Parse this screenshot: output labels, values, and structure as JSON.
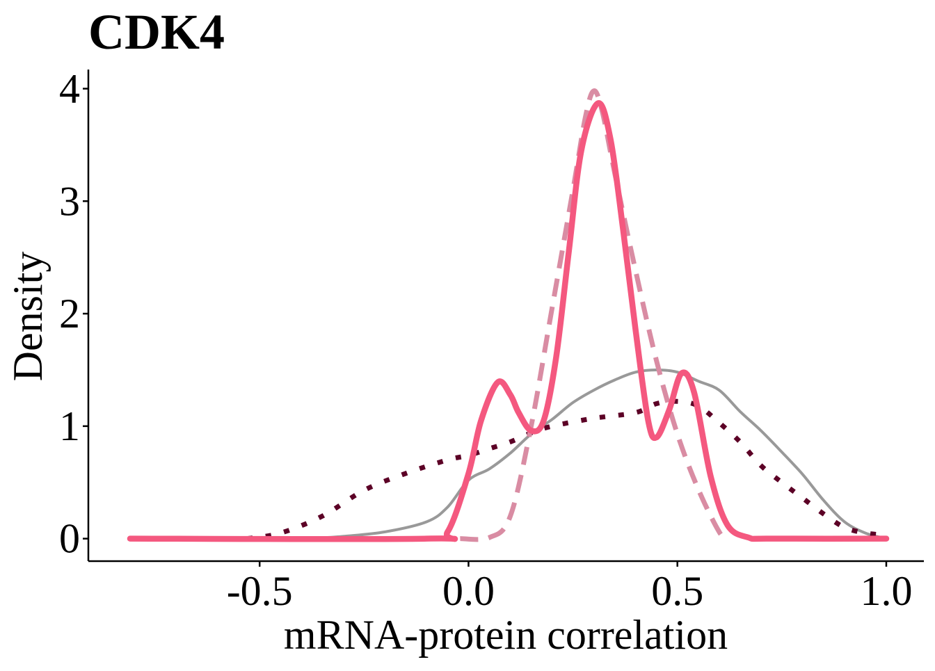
{
  "chart_data": {
    "type": "line",
    "title": "CDK4",
    "xlabel": "mRNA-protein correlation",
    "ylabel": "Density",
    "xlim": [
      -0.91,
      1.09
    ],
    "ylim": [
      -0.2,
      4.17
    ],
    "x_ticks": [
      {
        "value": -0.5,
        "label": "-0.5"
      },
      {
        "value": 0.0,
        "label": "0.0"
      },
      {
        "value": 0.5,
        "label": "0.5"
      },
      {
        "value": 1.0,
        "label": "1.0"
      }
    ],
    "y_ticks": [
      {
        "value": 0,
        "label": "0"
      },
      {
        "value": 1,
        "label": "1"
      },
      {
        "value": 2,
        "label": "2"
      },
      {
        "value": 3,
        "label": "3"
      },
      {
        "value": 4,
        "label": "4"
      }
    ],
    "grid": false,
    "legend": "none",
    "series": [
      {
        "style": "solid-thin",
        "color": "#999999",
        "points": [
          [
            -0.38,
            0.0
          ],
          [
            -0.3,
            0.02
          ],
          [
            -0.2,
            0.06
          ],
          [
            -0.1,
            0.15
          ],
          [
            -0.05,
            0.28
          ],
          [
            0.0,
            0.52
          ],
          [
            0.05,
            0.62
          ],
          [
            0.1,
            0.76
          ],
          [
            0.15,
            0.93
          ],
          [
            0.2,
            1.06
          ],
          [
            0.25,
            1.21
          ],
          [
            0.3,
            1.32
          ],
          [
            0.35,
            1.41
          ],
          [
            0.4,
            1.48
          ],
          [
            0.45,
            1.5
          ],
          [
            0.5,
            1.48
          ],
          [
            0.55,
            1.4
          ],
          [
            0.6,
            1.32
          ],
          [
            0.65,
            1.13
          ],
          [
            0.7,
            0.96
          ],
          [
            0.75,
            0.77
          ],
          [
            0.8,
            0.57
          ],
          [
            0.85,
            0.34
          ],
          [
            0.9,
            0.15
          ],
          [
            0.95,
            0.05
          ],
          [
            1.0,
            0.0
          ]
        ]
      },
      {
        "style": "dotted",
        "color": "#5c0026",
        "points": [
          [
            -0.53,
            0.0
          ],
          [
            -0.45,
            0.05
          ],
          [
            -0.35,
            0.2
          ],
          [
            -0.25,
            0.43
          ],
          [
            -0.15,
            0.58
          ],
          [
            -0.05,
            0.7
          ],
          [
            0.0,
            0.74
          ],
          [
            0.05,
            0.8
          ],
          [
            0.1,
            0.86
          ],
          [
            0.15,
            0.94
          ],
          [
            0.2,
            1.0
          ],
          [
            0.3,
            1.07
          ],
          [
            0.4,
            1.12
          ],
          [
            0.45,
            1.2
          ],
          [
            0.5,
            1.22
          ],
          [
            0.55,
            1.18
          ],
          [
            0.6,
            1.03
          ],
          [
            0.65,
            0.86
          ],
          [
            0.7,
            0.65
          ],
          [
            0.75,
            0.5
          ],
          [
            0.8,
            0.36
          ],
          [
            0.85,
            0.22
          ],
          [
            0.9,
            0.1
          ],
          [
            0.95,
            0.05
          ],
          [
            1.0,
            0.03
          ]
        ]
      },
      {
        "style": "dashed",
        "color": "#d98ca3",
        "points": [
          [
            -0.02,
            0.0
          ],
          [
            0.05,
            0.01
          ],
          [
            0.1,
            0.2
          ],
          [
            0.15,
            1.0
          ],
          [
            0.2,
            2.05
          ],
          [
            0.25,
            3.1
          ],
          [
            0.28,
            3.75
          ],
          [
            0.3,
            3.98
          ],
          [
            0.32,
            3.8
          ],
          [
            0.35,
            3.25
          ],
          [
            0.4,
            2.38
          ],
          [
            0.45,
            1.58
          ],
          [
            0.5,
            0.93
          ],
          [
            0.55,
            0.44
          ],
          [
            0.6,
            0.06
          ],
          [
            0.62,
            0.0
          ]
        ]
      },
      {
        "style": "solid-thick",
        "color": "#f4587f",
        "points": [
          [
            -0.81,
            0.0
          ],
          [
            -0.1,
            0.0
          ],
          [
            -0.05,
            0.06
          ],
          [
            0.0,
            0.58
          ],
          [
            0.03,
            1.05
          ],
          [
            0.07,
            1.39
          ],
          [
            0.1,
            1.28
          ],
          [
            0.12,
            1.12
          ],
          [
            0.15,
            0.96
          ],
          [
            0.18,
            1.05
          ],
          [
            0.21,
            1.62
          ],
          [
            0.24,
            2.55
          ],
          [
            0.27,
            3.45
          ],
          [
            0.31,
            3.87
          ],
          [
            0.34,
            3.55
          ],
          [
            0.37,
            2.75
          ],
          [
            0.4,
            1.85
          ],
          [
            0.43,
            1.05
          ],
          [
            0.45,
            0.9
          ],
          [
            0.48,
            1.14
          ],
          [
            0.51,
            1.47
          ],
          [
            0.54,
            1.3
          ],
          [
            0.58,
            0.55
          ],
          [
            0.62,
            0.12
          ],
          [
            0.67,
            0.01
          ],
          [
            0.72,
            0.0
          ],
          [
            1.0,
            0.0
          ]
        ]
      }
    ]
  }
}
